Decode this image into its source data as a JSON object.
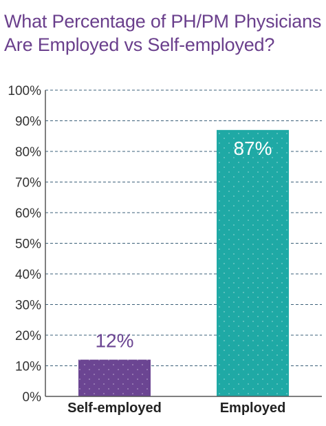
{
  "title_lines": [
    "What Percentage of PH/PM Physicians",
    "Are Employed vs Self-employed?"
  ],
  "colors": {
    "title": "#6a3f8c",
    "grid": "#3a5f78",
    "axis": "#555555"
  },
  "chart_data": {
    "type": "bar",
    "categories": [
      "Self-employed",
      "Employed"
    ],
    "values": [
      12,
      87
    ],
    "data_labels": [
      "12%",
      "87%"
    ],
    "bar_colors": [
      "#6b4592",
      "#1fa9a5"
    ],
    "data_label_colors": [
      "#6b4592",
      "#ffffff"
    ],
    "data_label_positions": [
      "above",
      "inside-top"
    ],
    "title": "What Percentage of PH/PM Physicians Are Employed vs Self-employed?",
    "xlabel": "",
    "ylabel": "",
    "ylim": [
      0,
      100
    ],
    "yticks": [
      0,
      10,
      20,
      30,
      40,
      50,
      60,
      70,
      80,
      90,
      100
    ],
    "ytick_labels": [
      "0%",
      "10%",
      "20%",
      "30%",
      "40%",
      "50%",
      "60%",
      "70%",
      "80%",
      "90%",
      "100%"
    ],
    "grid": true,
    "grid_style": "dashed",
    "legend": "none"
  }
}
